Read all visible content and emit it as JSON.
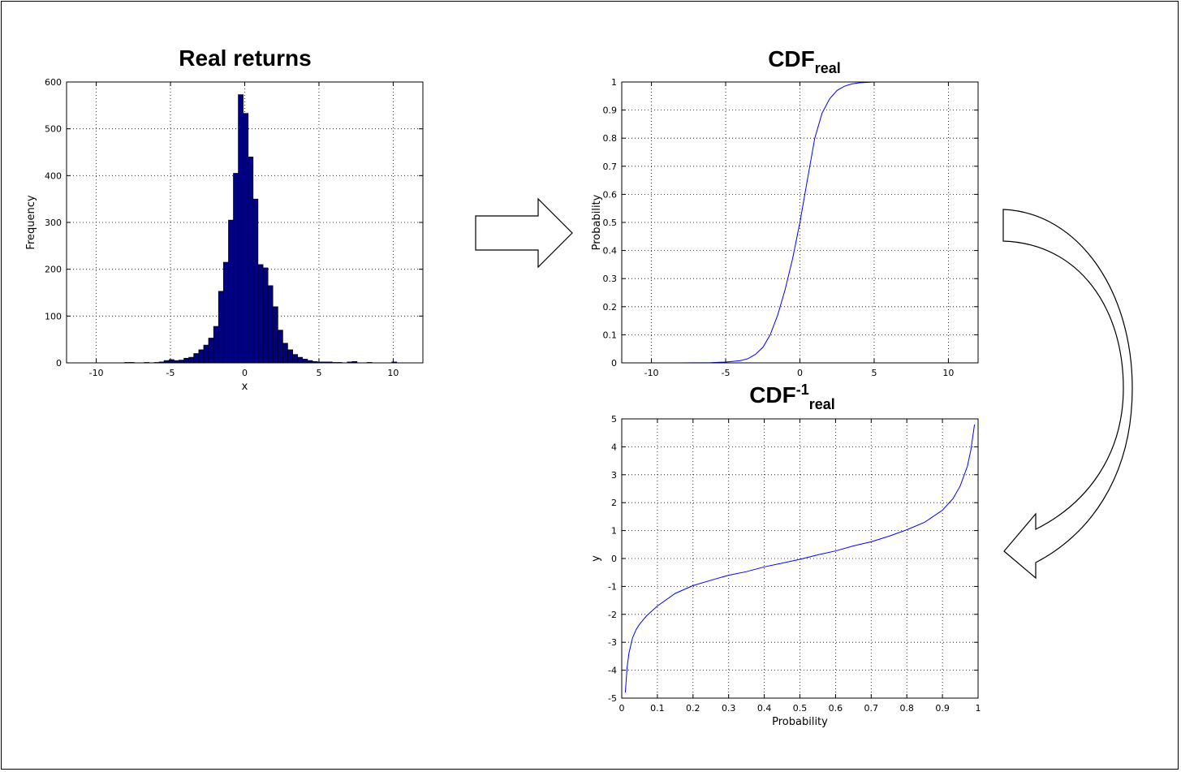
{
  "chart_data": [
    {
      "type": "bar",
      "title": "Real returns",
      "xlabel": "x",
      "ylabel": "Frequency",
      "xlim": [
        -12,
        12
      ],
      "ylim": [
        0,
        600
      ],
      "xticks": [
        "-10",
        "-5",
        "0",
        "5",
        "10"
      ],
      "yticks": [
        "0",
        "100",
        "200",
        "300",
        "400",
        "500",
        "600"
      ],
      "grid": true,
      "bar_color": "#000080",
      "bin_width": 0.333,
      "bins": [
        [
          -7.93,
          1
        ],
        [
          -7.6,
          1
        ],
        [
          -7.27,
          0
        ],
        [
          -6.93,
          0
        ],
        [
          -6.6,
          1
        ],
        [
          -6.27,
          0
        ],
        [
          -5.93,
          1
        ],
        [
          -5.6,
          2
        ],
        [
          -5.27,
          5
        ],
        [
          -4.93,
          7
        ],
        [
          -4.6,
          5
        ],
        [
          -4.27,
          6
        ],
        [
          -3.93,
          10
        ],
        [
          -3.6,
          12
        ],
        [
          -3.27,
          20
        ],
        [
          -2.93,
          28
        ],
        [
          -2.6,
          38
        ],
        [
          -2.27,
          53
        ],
        [
          -1.93,
          78
        ],
        [
          -1.6,
          153
        ],
        [
          -1.27,
          215
        ],
        [
          -0.93,
          305
        ],
        [
          -0.6,
          405
        ],
        [
          -0.27,
          573
        ],
        [
          0.07,
          533
        ],
        [
          0.4,
          440
        ],
        [
          0.73,
          350
        ],
        [
          1.07,
          210
        ],
        [
          1.4,
          203
        ],
        [
          1.73,
          165
        ],
        [
          2.07,
          120
        ],
        [
          2.4,
          70
        ],
        [
          2.73,
          42
        ],
        [
          3.07,
          28
        ],
        [
          3.4,
          18
        ],
        [
          3.73,
          12
        ],
        [
          4.07,
          8
        ],
        [
          4.4,
          5
        ],
        [
          4.73,
          3
        ],
        [
          5.07,
          2
        ],
        [
          5.4,
          2
        ],
        [
          5.73,
          2
        ],
        [
          6.07,
          1
        ],
        [
          6.4,
          1
        ],
        [
          6.73,
          0
        ],
        [
          7.07,
          2
        ],
        [
          7.4,
          3
        ],
        [
          7.73,
          0
        ],
        [
          8.07,
          0
        ],
        [
          8.4,
          1
        ],
        [
          8.73,
          0
        ],
        [
          9.07,
          0
        ],
        [
          9.4,
          0
        ],
        [
          9.73,
          0
        ],
        [
          10.07,
          2
        ]
      ]
    },
    {
      "type": "line",
      "title": "CDF",
      "title_subscript": "real",
      "xlabel": "",
      "ylabel": "Probability",
      "xlim": [
        -12,
        12
      ],
      "ylim": [
        0,
        1
      ],
      "xticks": [
        "-10",
        "-5",
        "0",
        "5",
        "10"
      ],
      "yticks": [
        "0",
        "0.1",
        "0.2",
        "0.3",
        "0.4",
        "0.5",
        "0.6",
        "0.7",
        "0.8",
        "0.9",
        "1"
      ],
      "grid": true,
      "line_color": "#0000ff",
      "x": [
        -8,
        -6,
        -5,
        -4,
        -3.5,
        -3,
        -2.5,
        -2,
        -1.5,
        -1,
        -0.5,
        0,
        0.5,
        1,
        1.5,
        2,
        2.5,
        3,
        3.5,
        4,
        5
      ],
      "y": [
        0,
        0.001,
        0.003,
        0.008,
        0.015,
        0.03,
        0.055,
        0.1,
        0.17,
        0.26,
        0.37,
        0.5,
        0.65,
        0.8,
        0.89,
        0.94,
        0.97,
        0.985,
        0.993,
        0.997,
        1
      ]
    },
    {
      "type": "line",
      "title": "CDF",
      "title_superscript": "-1",
      "title_subscript": "real",
      "xlabel": "Probability",
      "ylabel": "y",
      "xlim": [
        0,
        1
      ],
      "ylim": [
        -5,
        5
      ],
      "xticks": [
        "0",
        "0.1",
        "0.2",
        "0.3",
        "0.4",
        "0.5",
        "0.6",
        "0.7",
        "0.8",
        "0.9",
        "1"
      ],
      "yticks": [
        "-5",
        "-4",
        "-3",
        "-2",
        "-1",
        "0",
        "1",
        "2",
        "3",
        "4",
        "5"
      ],
      "grid": true,
      "line_color": "#0000ff",
      "x": [
        0.01,
        0.015,
        0.02,
        0.03,
        0.04,
        0.05,
        0.07,
        0.1,
        0.15,
        0.2,
        0.25,
        0.3,
        0.35,
        0.4,
        0.45,
        0.5,
        0.55,
        0.6,
        0.65,
        0.7,
        0.75,
        0.8,
        0.85,
        0.9,
        0.93,
        0.95,
        0.97,
        0.98,
        0.99
      ],
      "y": [
        -4.8,
        -3.9,
        -3.4,
        -2.85,
        -2.55,
        -2.35,
        -2.05,
        -1.7,
        -1.25,
        -0.97,
        -0.78,
        -0.6,
        -0.47,
        -0.3,
        -0.17,
        -0.03,
        0.13,
        0.27,
        0.45,
        0.6,
        0.8,
        1.03,
        1.3,
        1.73,
        2.15,
        2.6,
        3.3,
        3.9,
        4.8
      ]
    }
  ]
}
